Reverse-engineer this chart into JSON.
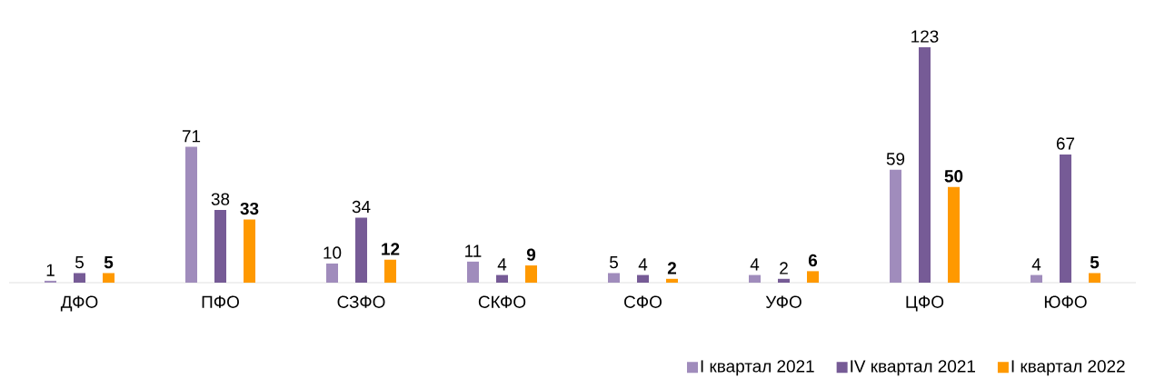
{
  "chart_data": {
    "type": "bar",
    "categories": [
      "ДФО",
      "ПФО",
      "СЗФО",
      "СКФО",
      "СФО",
      "УФО",
      "ЦФО",
      "ЮФО"
    ],
    "series": [
      {
        "name": "I квартал 2021",
        "color": "#a08cbc",
        "values": [
          1,
          71,
          10,
          11,
          5,
          4,
          59,
          4
        ]
      },
      {
        "name": "IV квартал 2021",
        "color": "#765b96",
        "values": [
          5,
          38,
          34,
          4,
          4,
          2,
          123,
          67
        ]
      },
      {
        "name": "I квартал 2022",
        "color": "#ff9900",
        "values": [
          5,
          33,
          12,
          9,
          2,
          6,
          50,
          5
        ]
      }
    ],
    "data_labels": true,
    "legend": "bottom right"
  }
}
